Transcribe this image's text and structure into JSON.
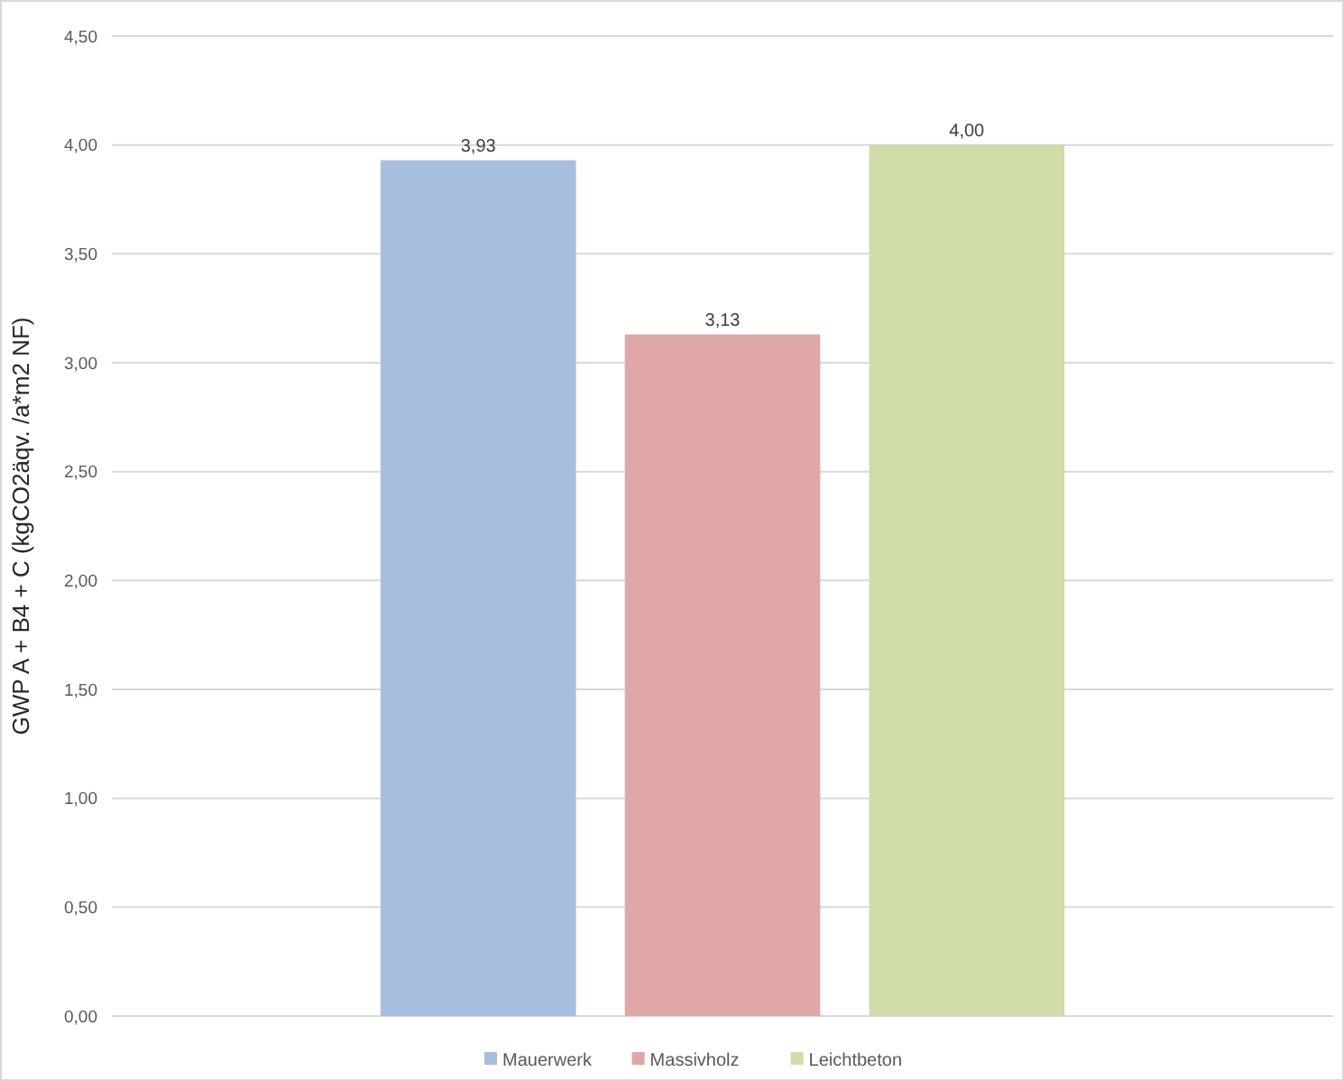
{
  "chart_data": {
    "type": "bar",
    "ylabel": "GWP A + B4 + C (kgCO2äqv. /a*m2 NF)",
    "categories": [
      null
    ],
    "series": [
      {
        "name": "Mauerwerk",
        "color": "#a7bfde",
        "values": [
          3.93
        ],
        "value_labels": [
          "3,93"
        ]
      },
      {
        "name": "Massivholz",
        "color": "#dfa7a6",
        "values": [
          3.13
        ],
        "value_labels": [
          "3,13"
        ]
      },
      {
        "name": "Leichtbeton",
        "color": "#cfdda9",
        "values": [
          4.0
        ],
        "value_labels": [
          "4,00"
        ]
      }
    ],
    "ylim": [
      0,
      4.5
    ],
    "yticks": [
      {
        "value": 0,
        "label": "0,00"
      },
      {
        "value": 0.5,
        "label": "0,50"
      },
      {
        "value": 1,
        "label": "1,00"
      },
      {
        "value": 1.5,
        "label": "1,50"
      },
      {
        "value": 2,
        "label": "2,00"
      },
      {
        "value": 2.5,
        "label": "2,50"
      },
      {
        "value": 3,
        "label": "3,00"
      },
      {
        "value": 3.5,
        "label": "3,50"
      },
      {
        "value": 4,
        "label": "4,00"
      },
      {
        "value": 4.5,
        "label": "4,50"
      }
    ],
    "grid": "y",
    "legend": "bottom"
  }
}
